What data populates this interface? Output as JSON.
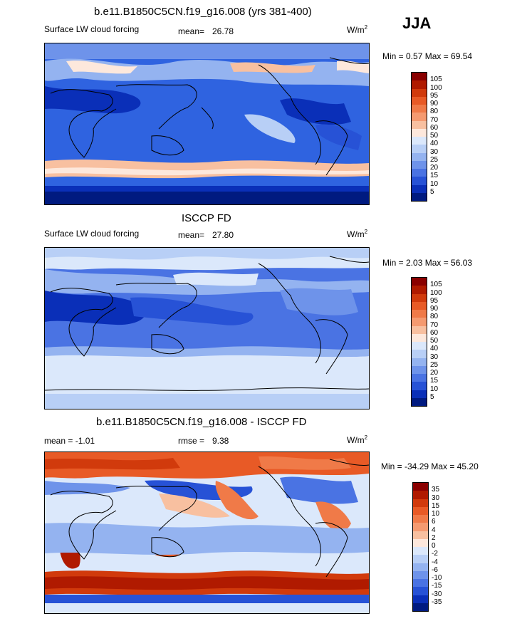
{
  "season": "JJA",
  "panels": [
    {
      "title": "b.e11.B1850C5CN.f19_g16.008 (yrs 381-400)",
      "left": "Surface LW cloud forcing",
      "stat_label": "mean=",
      "stat_value": "26.78",
      "units": "W/m",
      "units_sup": "2",
      "minmax": "Min =   0.57 Max =  69.54",
      "levels": [
        "105",
        "100",
        "95",
        "90",
        "80",
        "70",
        "60",
        "50",
        "40",
        "30",
        "25",
        "20",
        "15",
        "10",
        "5"
      ],
      "colors": [
        "#8a0000",
        "#b01a00",
        "#d13a0c",
        "#e85a26",
        "#f07a48",
        "#f59a70",
        "#f8c0a0",
        "#fde8dc",
        "#dbe8fb",
        "#b8cff6",
        "#94b3f0",
        "#6e93ea",
        "#4a73e3",
        "#2752d6",
        "#0a2fb8",
        "#001a80"
      ]
    },
    {
      "title": "ISCCP FD",
      "left": "Surface LW cloud forcing",
      "stat_label": "mean=",
      "stat_value": "27.80",
      "units": "W/m",
      "units_sup": "2",
      "minmax": "Min =   2.03 Max =  56.03",
      "levels": [
        "105",
        "100",
        "95",
        "90",
        "80",
        "70",
        "60",
        "50",
        "40",
        "30",
        "25",
        "20",
        "15",
        "10",
        "5"
      ],
      "colors": [
        "#8a0000",
        "#b01a00",
        "#d13a0c",
        "#e85a26",
        "#f07a48",
        "#f59a70",
        "#f8c0a0",
        "#fde8dc",
        "#dbe8fb",
        "#b8cff6",
        "#94b3f0",
        "#6e93ea",
        "#4a73e3",
        "#2752d6",
        "#0a2fb8",
        "#001a80"
      ]
    },
    {
      "title": "b.e11.B1850C5CN.f19_g16.008 - ISCCP FD",
      "left": "mean =  -1.01",
      "stat_label": "rmse =",
      "stat_value": "9.38",
      "units": "W/m",
      "units_sup": "2",
      "minmax": "Min = -34.29 Max =  45.20",
      "levels": [
        "35",
        "30",
        "15",
        "10",
        "6",
        "4",
        "2",
        "0",
        "-2",
        "-4",
        "-6",
        "-10",
        "-15",
        "-30",
        "-35"
      ],
      "colors": [
        "#8a0000",
        "#b01a00",
        "#d13a0c",
        "#e85a26",
        "#f07a48",
        "#f59a70",
        "#f8c0a0",
        "#fde8dc",
        "#dbe8fb",
        "#b8cff6",
        "#94b3f0",
        "#6e93ea",
        "#4a73e3",
        "#2752d6",
        "#0a2fb8",
        "#001a80"
      ]
    }
  ]
}
